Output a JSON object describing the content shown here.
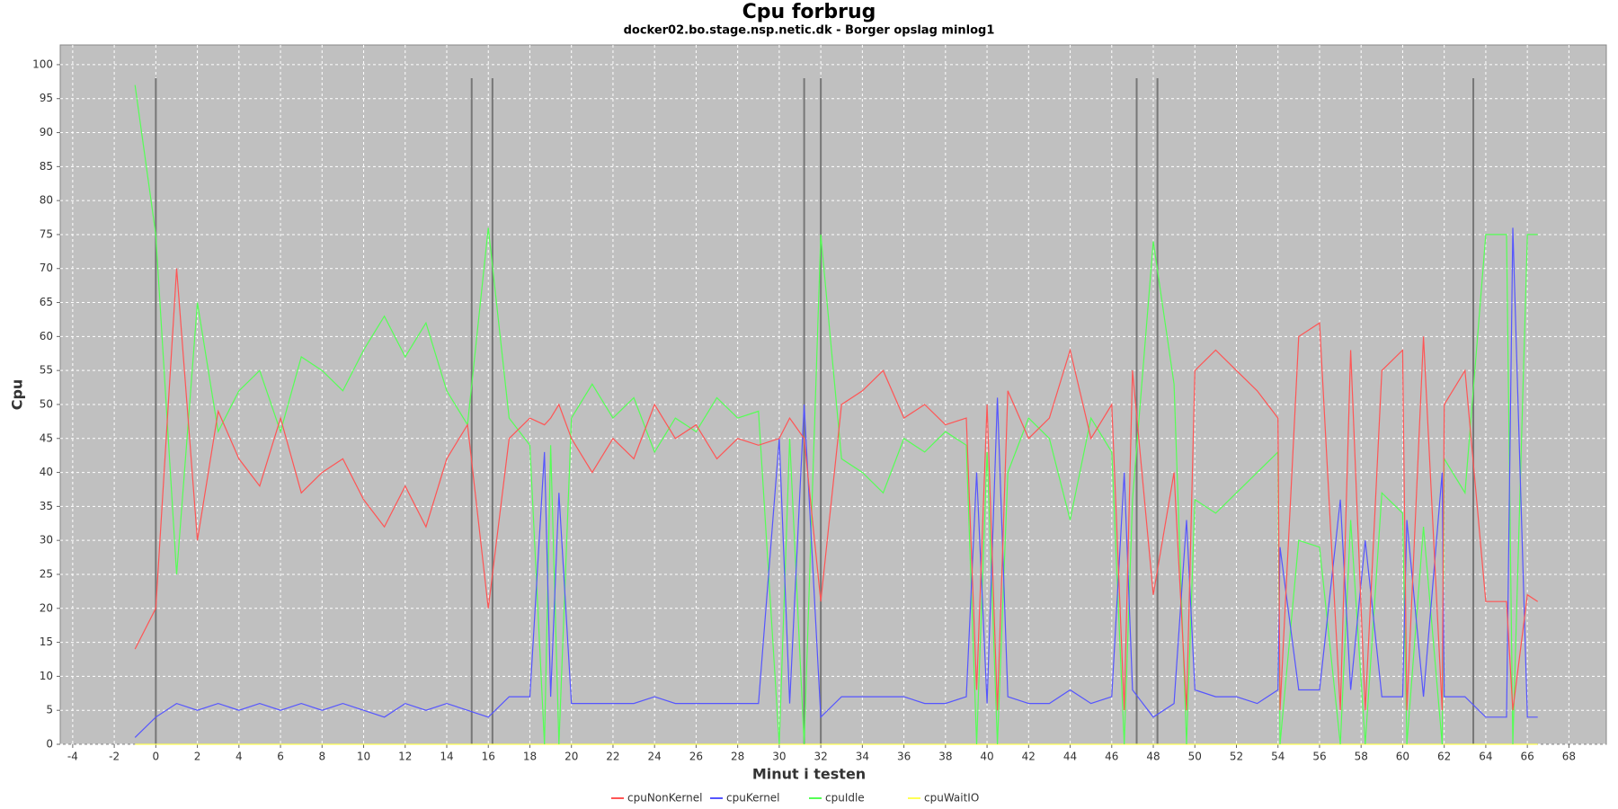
{
  "chart_data": {
    "type": "line",
    "title": "Cpu forbrug",
    "subtitle": "docker02.bo.stage.nsp.netic.dk - Borger opslag minlog1",
    "x_label": "Minut i testen",
    "y_label": "Cpu",
    "x": [
      -1,
      0,
      1,
      2,
      3,
      4,
      5,
      6,
      7,
      8,
      9,
      10,
      11,
      12,
      13,
      14,
      15,
      16,
      17,
      18,
      18.7,
      19,
      19.4,
      20,
      21,
      22,
      23,
      24,
      25,
      26,
      27,
      28,
      29,
      30,
      30.5,
      31.2,
      32,
      33,
      34,
      35,
      36,
      37,
      38,
      39,
      39.5,
      40,
      40.5,
      41,
      42,
      43,
      44,
      45,
      46,
      46.6,
      47,
      48,
      49,
      49.6,
      50,
      51,
      52,
      53,
      54,
      54.1,
      55,
      56,
      57,
      57.5,
      58.2,
      59,
      60,
      60.2,
      61,
      61.9,
      62,
      63,
      64,
      65,
      65.3,
      66,
      66.5
    ],
    "series": [
      {
        "name": "cpuNonKernel",
        "color": "#ff5555",
        "values": [
          14,
          20,
          70,
          30,
          49,
          42,
          38,
          48,
          37,
          40,
          42,
          36,
          32,
          38,
          32,
          42,
          47,
          20,
          45,
          48,
          47,
          48,
          50,
          45,
          40,
          45,
          42,
          50,
          45,
          47,
          42,
          45,
          44,
          45,
          48,
          45,
          21,
          50,
          52,
          55,
          48,
          50,
          47,
          48,
          8,
          50,
          5,
          52,
          45,
          48,
          58,
          45,
          50,
          5,
          55,
          22,
          40,
          5,
          55,
          58,
          55,
          52,
          48,
          5,
          60,
          62,
          5,
          58,
          5,
          55,
          58,
          5,
          60,
          5,
          50,
          55,
          21,
          21,
          5,
          22,
          21
        ]
      },
      {
        "name": "cpuKernel",
        "color": "#5555ff",
        "values": [
          1,
          4,
          6,
          5,
          6,
          5,
          6,
          5,
          6,
          5,
          6,
          5,
          4,
          6,
          5,
          6,
          5,
          4,
          7,
          7,
          43,
          7,
          37,
          6,
          6,
          6,
          6,
          7,
          6,
          6,
          6,
          6,
          6,
          45,
          6,
          50,
          4,
          7,
          7,
          7,
          7,
          6,
          6,
          7,
          40,
          6,
          51,
          7,
          6,
          6,
          8,
          6,
          7,
          40,
          8,
          4,
          6,
          33,
          8,
          7,
          7,
          6,
          8,
          29,
          8,
          8,
          36,
          8,
          30,
          7,
          7,
          33,
          7,
          40,
          7,
          7,
          4,
          4,
          76,
          4,
          4
        ]
      },
      {
        "name": "cpuIdle",
        "color": "#55ff55",
        "values": [
          97,
          75,
          25,
          65,
          46,
          52,
          55,
          46,
          57,
          55,
          52,
          58,
          63,
          57,
          62,
          52,
          47,
          76,
          48,
          44,
          0,
          44,
          0,
          48,
          53,
          48,
          51,
          43,
          48,
          46,
          51,
          48,
          49,
          0,
          45,
          0,
          75,
          42,
          40,
          37,
          45,
          43,
          46,
          44,
          0,
          43,
          0,
          40,
          48,
          45,
          33,
          48,
          43,
          0,
          36,
          74,
          53,
          0,
          36,
          34,
          37,
          40,
          43,
          0,
          30,
          29,
          0,
          33,
          0,
          37,
          34,
          0,
          32,
          0,
          42,
          37,
          75,
          75,
          0,
          75,
          75
        ]
      },
      {
        "name": "cpuWaitIO",
        "color": "#ffff55",
        "values": [
          0,
          0,
          0,
          0,
          0,
          0,
          0,
          0,
          0,
          0,
          0,
          0,
          0,
          0,
          0,
          0,
          0,
          0,
          0,
          0,
          0,
          0,
          0,
          0,
          0,
          0,
          0,
          0,
          0,
          0,
          0,
          0,
          0,
          0,
          0,
          0,
          0,
          0,
          0,
          0,
          0,
          0,
          0,
          0,
          0,
          0,
          0,
          0,
          0,
          0,
          0,
          0,
          0,
          0,
          0,
          0,
          0,
          0,
          0,
          0,
          0,
          0,
          0,
          0,
          0,
          0,
          0,
          0,
          0,
          0,
          0,
          0,
          0,
          0,
          0,
          0,
          0,
          0,
          0,
          0,
          0
        ]
      }
    ],
    "vlines": [
      0,
      15.2,
      16.2,
      31.2,
      32,
      47.2,
      48.2,
      63.4
    ],
    "vline_top": 98,
    "xlim": [
      -4.6,
      69.8
    ],
    "ylim": [
      0,
      102.9
    ],
    "xticks": [
      -4,
      -2,
      0,
      2,
      4,
      6,
      8,
      10,
      12,
      14,
      16,
      18,
      20,
      22,
      24,
      26,
      28,
      30,
      32,
      34,
      36,
      38,
      40,
      42,
      44,
      46,
      48,
      50,
      52,
      54,
      56,
      58,
      60,
      62,
      64,
      66,
      68
    ],
    "yticks": [
      0,
      5,
      10,
      15,
      20,
      25,
      30,
      35,
      40,
      45,
      50,
      55,
      60,
      65,
      70,
      75,
      80,
      85,
      90,
      95,
      100
    ],
    "grid": true,
    "legend": "bottom"
  }
}
